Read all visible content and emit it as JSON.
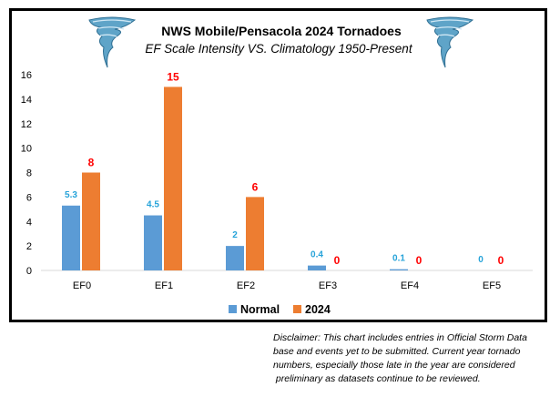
{
  "title": "NWS Mobile/Pensacola 2024 Tornadoes",
  "subtitle": "EF Scale Intensity VS. Climatology 1950-Present",
  "icons": [
    "tornado-icon",
    "tornado-icon"
  ],
  "colors": {
    "normal": "#5b9bd5",
    "y2024": "#ed7d31",
    "normal_label": "#26a3d9",
    "y2024_label": "#ff0000"
  },
  "chart_data": {
    "type": "bar",
    "title": "NWS Mobile/Pensacola 2024 Tornadoes",
    "subtitle": "EF Scale Intensity VS. Climatology 1950-Present",
    "categories": [
      "EF0",
      "EF1",
      "EF2",
      "EF3",
      "EF4",
      "EF5"
    ],
    "series": [
      {
        "name": "Normal",
        "values": [
          5.3,
          4.5,
          2,
          0.4,
          0.1,
          0
        ],
        "labels": [
          "5.3",
          "4.5",
          "2",
          "0.4",
          "0.1",
          "0"
        ]
      },
      {
        "name": "2024",
        "values": [
          8,
          15,
          6,
          0,
          0,
          0
        ],
        "labels": [
          "8",
          "15",
          "6",
          "0",
          "0",
          "0"
        ]
      }
    ],
    "ylim": [
      0,
      16
    ],
    "yticks": [
      0,
      2,
      4,
      6,
      8,
      10,
      12,
      14,
      16
    ],
    "grid": false,
    "legend": "bottom",
    "xlabel": "",
    "ylabel": ""
  },
  "disclaimer": {
    "lines": [
      "Disclaimer: This chart includes entries in Official Storm Data",
      "base and events yet to be submitted. Current year tornado",
      "numbers, especially those late in the year are considered",
      " preliminary as datasets continue to be reviewed."
    ]
  }
}
